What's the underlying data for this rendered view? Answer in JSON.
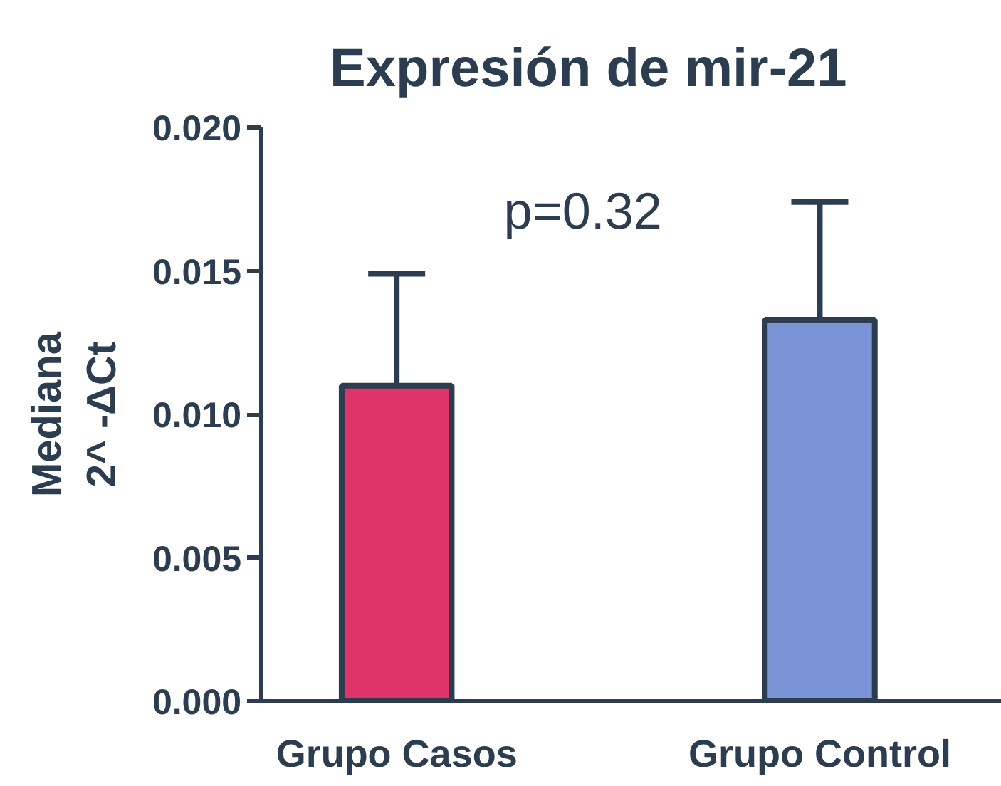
{
  "chart_data": {
    "type": "bar",
    "title": "Expresión de mir-21",
    "ylabel": "Mediana\n2^ -ΔCt",
    "categories": [
      "Grupo Casos",
      "Grupo Control"
    ],
    "values": [
      0.011,
      0.0133
    ],
    "colors": [
      "#e0336c",
      "#7a94d6"
    ],
    "errors": [
      [
        0.011,
        0.0149
      ],
      [
        0.0133,
        0.0174
      ]
    ],
    "ylim": [
      0,
      0.02
    ],
    "yticks": [
      {
        "value": 0,
        "label": "0.000"
      },
      {
        "value": 0.005,
        "label": "0.005"
      },
      {
        "value": 0.01,
        "label": "0.010"
      },
      {
        "value": 0.015,
        "label": "0.015"
      },
      {
        "value": 0.02,
        "label": "0.020"
      }
    ],
    "annotations": [
      "p=0.32"
    ]
  }
}
